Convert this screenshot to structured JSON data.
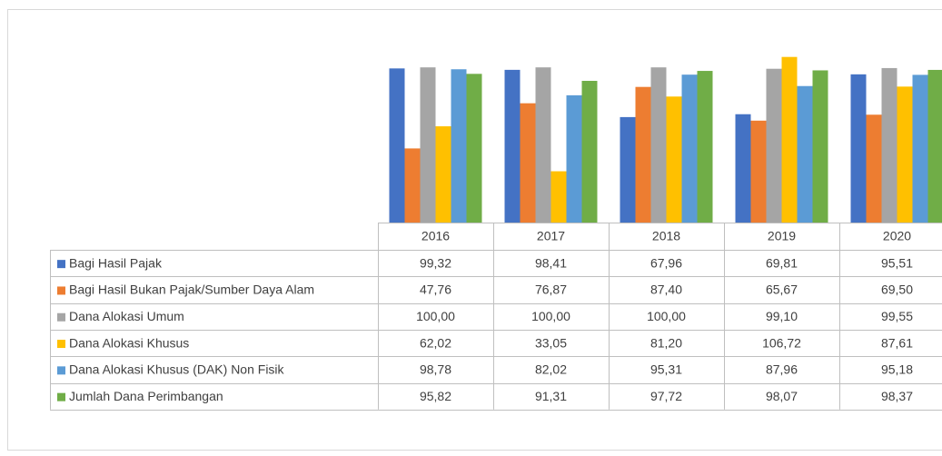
{
  "chart_data": {
    "type": "bar",
    "categories": [
      "2016",
      "2017",
      "2018",
      "2019",
      "2020"
    ],
    "ylim": [
      0,
      120
    ],
    "series": [
      {
        "name": "Bagi Hasil Pajak",
        "color": "#4472c4",
        "values": [
          99.32,
          98.41,
          67.96,
          69.81,
          95.51
        ],
        "value_labels": [
          "99,32",
          "98,41",
          "67,96",
          "69,81",
          "95,51"
        ]
      },
      {
        "name": "Bagi Hasil Bukan Pajak/Sumber Daya Alam",
        "color": "#ed7d31",
        "values": [
          47.76,
          76.87,
          87.4,
          65.67,
          69.5
        ],
        "value_labels": [
          "47,76",
          "76,87",
          "87,40",
          "65,67",
          "69,50"
        ]
      },
      {
        "name": "Dana Alokasi Umum",
        "color": "#a5a5a5",
        "values": [
          100.0,
          100.0,
          100.0,
          99.1,
          99.55
        ],
        "value_labels": [
          "100,00",
          "100,00",
          "100,00",
          "99,10",
          "99,55"
        ]
      },
      {
        "name": "Dana Alokasi Khusus",
        "color": "#ffc000",
        "values": [
          62.02,
          33.05,
          81.2,
          106.72,
          87.61
        ],
        "value_labels": [
          "62,02",
          "33,05",
          "81,20",
          "106,72",
          "87,61"
        ]
      },
      {
        "name": "Dana Alokasi Khusus (DAK) Non Fisik",
        "color": "#5b9bd5",
        "values": [
          98.78,
          82.02,
          95.31,
          87.96,
          95.18
        ],
        "value_labels": [
          "98,78",
          "82,02",
          "95,31",
          "87,96",
          "95,18"
        ]
      },
      {
        "name": "Jumlah Dana Perimbangan",
        "color": "#70ad47",
        "values": [
          95.82,
          91.31,
          97.72,
          98.07,
          98.37
        ],
        "value_labels": [
          "95,82",
          "91,31",
          "97,72",
          "98,07",
          "98,37"
        ]
      }
    ]
  }
}
